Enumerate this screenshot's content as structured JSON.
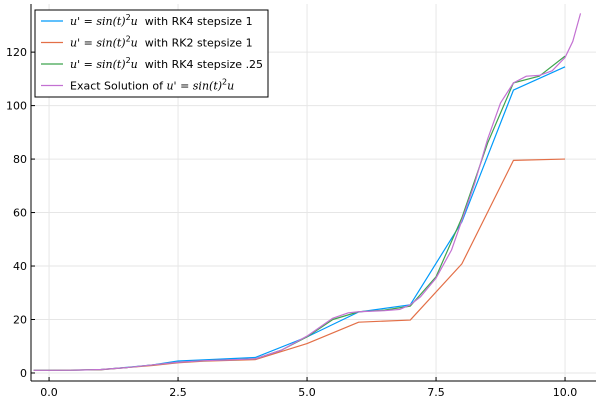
{
  "chart_data": {
    "type": "line",
    "title": "",
    "xlabel": "",
    "ylabel": "",
    "xlim": [
      -0.35,
      10.6
    ],
    "ylim": [
      -3,
      138
    ],
    "x_ticks": [
      0,
      2.5,
      5,
      7.5,
      10
    ],
    "x_tick_labels": [
      "0.0",
      "2.5",
      "5.0",
      "7.5",
      "10.0"
    ],
    "y_ticks": [
      0,
      20,
      40,
      60,
      80,
      100,
      120
    ],
    "y_tick_labels": [
      "0",
      "20",
      "40",
      "60",
      "80",
      "100",
      "120"
    ],
    "grid": true,
    "legend_position": "top-left",
    "series": [
      {
        "name": "u' = sin(t)²u  with RK4 stepsize 1",
        "legend_math": "u' = sin(t)",
        "legend_sup": "2",
        "legend_var": "u",
        "legend_tail": "  with RK4 stepsize 1",
        "color": "#009AFA",
        "points": [
          [
            -0.3,
            1.0
          ],
          [
            0,
            1.0
          ],
          [
            1,
            1.2
          ],
          [
            2,
            3.0
          ],
          [
            2.5,
            4.5
          ],
          [
            3,
            4.9
          ],
          [
            4,
            5.8
          ],
          [
            5,
            13.5
          ],
          [
            6,
            22.8
          ],
          [
            7,
            25.5
          ],
          [
            8,
            56.5
          ],
          [
            9,
            105.8
          ],
          [
            10,
            114.5
          ]
        ]
      },
      {
        "name": "u' = sin(t)²u  with RK2 stepsize 1",
        "legend_math": "u' = sin(t)",
        "legend_sup": "2",
        "legend_var": "u",
        "legend_tail": "  with RK2 stepsize 1",
        "color": "#E36F47",
        "points": [
          [
            -0.3,
            1.0
          ],
          [
            0,
            1.0
          ],
          [
            1,
            1.2
          ],
          [
            2,
            2.8
          ],
          [
            2.5,
            3.8
          ],
          [
            3,
            4.4
          ],
          [
            4,
            5.0
          ],
          [
            5,
            11.0
          ],
          [
            6,
            19.0
          ],
          [
            7,
            19.8
          ],
          [
            8,
            40.8
          ],
          [
            9,
            79.5
          ],
          [
            10,
            80.0
          ]
        ]
      },
      {
        "name": "u' = sin(t)²u  with RK4 stepsize .25",
        "legend_math": "u' = sin(t)",
        "legend_sup": "2",
        "legend_var": "u",
        "legend_tail": "  with RK4 stepsize .25",
        "color": "#3EA44E",
        "points": [
          [
            -0.3,
            1.0
          ],
          [
            0,
            1.0
          ],
          [
            0.5,
            1.05
          ],
          [
            1,
            1.3
          ],
          [
            1.5,
            2.0
          ],
          [
            2,
            3.0
          ],
          [
            2.5,
            4.0
          ],
          [
            3,
            4.6
          ],
          [
            3.5,
            4.9
          ],
          [
            4,
            5.3
          ],
          [
            4.5,
            8.5
          ],
          [
            5,
            13.5
          ],
          [
            5.5,
            20.0
          ],
          [
            6,
            22.9
          ],
          [
            6.5,
            23.5
          ],
          [
            7,
            25.0
          ],
          [
            7.5,
            36.0
          ],
          [
            8,
            58.0
          ],
          [
            8.5,
            86.0
          ],
          [
            9,
            108.5
          ],
          [
            9.5,
            111.0
          ],
          [
            10,
            118.5
          ]
        ]
      },
      {
        "name": "Exact Solution of  u' = sin(t)²u",
        "legend_math": "Exact Solution of  u' = sin(t)",
        "legend_sup": "2",
        "legend_var": "u",
        "legend_tail": "",
        "color": "#C371D2",
        "points": [
          [
            -0.3,
            1.0
          ],
          [
            0,
            1.0
          ],
          [
            0.5,
            1.05
          ],
          [
            1,
            1.3
          ],
          [
            1.5,
            2.0
          ],
          [
            2,
            3.0
          ],
          [
            2.5,
            4.0
          ],
          [
            3,
            4.6
          ],
          [
            3.5,
            4.9
          ],
          [
            4,
            5.3
          ],
          [
            4.5,
            8.5
          ],
          [
            5,
            13.8
          ],
          [
            5.5,
            20.5
          ],
          [
            5.8,
            22.5
          ],
          [
            6,
            22.9
          ],
          [
            6.5,
            23.3
          ],
          [
            6.8,
            23.8
          ],
          [
            7,
            25.5
          ],
          [
            7.2,
            28.5
          ],
          [
            7.5,
            35.5
          ],
          [
            7.8,
            46.0
          ],
          [
            8,
            57.0
          ],
          [
            8.25,
            71.0
          ],
          [
            8.5,
            87.5
          ],
          [
            8.75,
            101.0
          ],
          [
            9,
            108.5
          ],
          [
            9.25,
            111.0
          ],
          [
            9.5,
            111.3
          ],
          [
            9.75,
            113.0
          ],
          [
            10,
            118.0
          ],
          [
            10.15,
            124.0
          ],
          [
            10.3,
            134.5
          ]
        ]
      }
    ]
  }
}
